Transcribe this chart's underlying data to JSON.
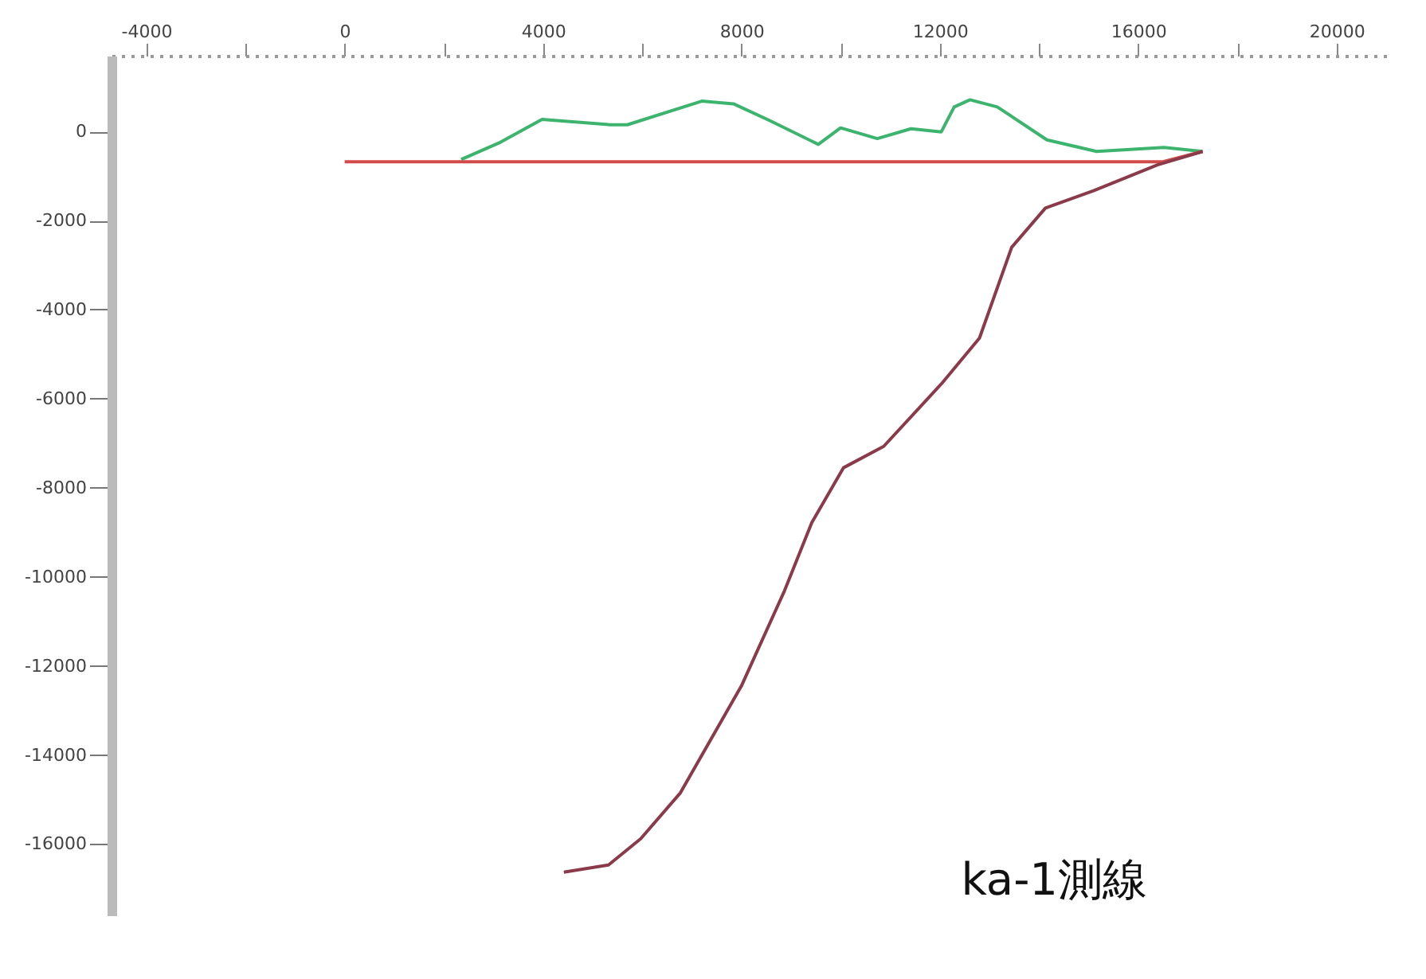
{
  "chart_data": {
    "type": "line",
    "annotations": [
      "ka-1測線"
    ],
    "xlim": [
      -4700,
      21000
    ],
    "xticks": [
      -4000,
      {
        "value": -2000,
        "label": null
      },
      0,
      {
        "value": 2000,
        "label": null
      },
      4000,
      {
        "value": 6000,
        "label": null
      },
      8000,
      {
        "value": 10000,
        "label": null
      },
      12000,
      {
        "value": 14000,
        "label": null
      },
      16000,
      {
        "value": 18000,
        "label": null
      },
      20000
    ],
    "ylim": [
      -17600,
      1700
    ],
    "yticks": [
      0,
      -2000,
      -4000,
      -6000,
      -8000,
      -10000,
      -12000,
      -14000,
      -16000
    ],
    "grid": false,
    "marker": "none",
    "line_style": "solid",
    "series": [
      {
        "color": "#3cb46e",
        "x": [
          2350,
          3110,
          3980,
          5350,
          5700,
          7200,
          7840,
          8580,
          9550,
          10000,
          10740,
          11420,
          12030,
          12290,
          12610,
          13160,
          14160,
          15160,
          16520,
          17300
        ],
        "values": [
          -630,
          -260,
          270,
          150,
          150,
          680,
          620,
          240,
          -290,
          80,
          -160,
          60,
          -10,
          550,
          710,
          550,
          -190,
          -450,
          -360,
          -450
        ]
      },
      {
        "color": "#d24b4b",
        "x": [
          0,
          16500,
          17300
        ],
        "values": [
          -680,
          -680,
          -450
        ]
      },
      {
        "color": "#8b3a4a",
        "x": [
          17300,
          16390,
          15100,
          14130,
          13450,
          12800,
          12030,
          10870,
          10060,
          9420,
          8870,
          8000,
          6770,
          5970,
          5320,
          4420
        ],
        "values": [
          -450,
          -750,
          -1330,
          -1720,
          -2600,
          -4640,
          -5670,
          -7070,
          -7550,
          -8780,
          -10310,
          -12450,
          -14850,
          -15880,
          -16470,
          -16630
        ]
      }
    ]
  }
}
